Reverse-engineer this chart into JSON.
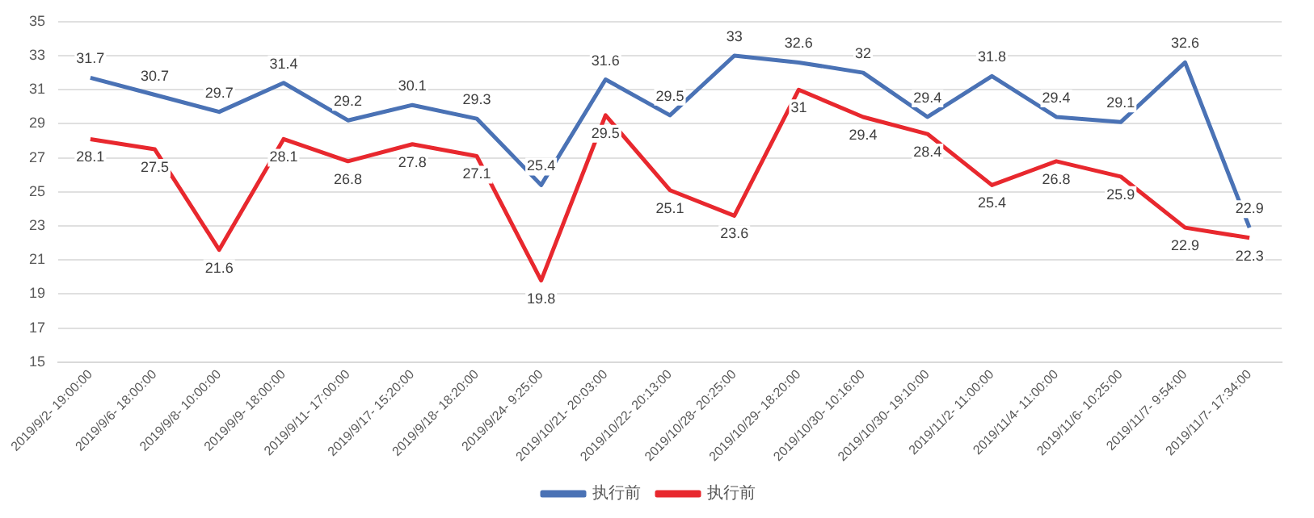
{
  "chart_data": {
    "type": "line",
    "categories": [
      "2019/9/2- 19:00:00",
      "2019/9/6- 18:00:00",
      "2019/9/8- 10:00:00",
      "2019/9/9- 18:00:00",
      "2019/9/11- 17:00:00",
      "2019/9/17- 15:20:00",
      "2019/9/18- 18:20:00",
      "2019/9/24- 9:25:00",
      "2019/10/21- 20:03:00",
      "2019/10/22- 20:13:00",
      "2019/10/28- 20:25:00",
      "2019/10/29- 18:20:00",
      "2019/10/30- 10:16:00",
      "2019/10/30- 19:10:00",
      "2019/11/2- 11:00:00",
      "2019/11/4- 11:00:00",
      "2019/11/6- 10:25:00",
      "2019/11/7- 9:54:00",
      "2019/11/7- 17:34:00"
    ],
    "series": [
      {
        "name": "执行前",
        "color": "#4a72b5",
        "values": [
          31.7,
          30.7,
          29.7,
          31.4,
          29.2,
          30.1,
          29.3,
          25.4,
          31.6,
          29.5,
          33,
          32.6,
          32,
          29.4,
          31.8,
          29.4,
          29.1,
          32.6,
          22.9
        ]
      },
      {
        "name": "执行前",
        "color": "#e8282e",
        "values": [
          28.1,
          27.5,
          21.6,
          28.1,
          26.8,
          27.8,
          27.1,
          19.8,
          29.5,
          25.1,
          23.6,
          31,
          29.4,
          28.4,
          25.4,
          26.8,
          25.9,
          22.9,
          22.3
        ]
      }
    ],
    "ylim": [
      15,
      35
    ],
    "yticks": [
      15,
      17,
      19,
      21,
      23,
      25,
      27,
      29,
      31,
      33,
      35
    ],
    "grid": "y",
    "legend": "bottom",
    "data_labels": true,
    "marker": "none",
    "line_style": "solid"
  }
}
